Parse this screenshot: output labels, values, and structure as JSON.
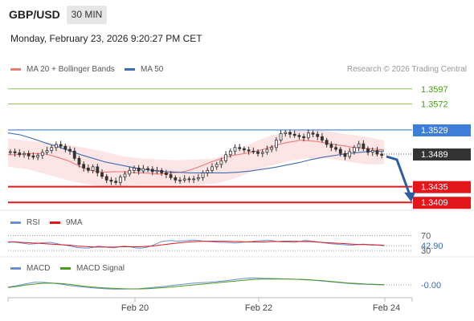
{
  "header": {
    "symbol": "GBP/USD",
    "timeframe": "30 MIN",
    "datetime": "Monday, February 23, 2026 9:20:27 PM CET"
  },
  "legend": {
    "ma20_label": "MA 20 + Bollinger Bands",
    "ma50_label": "MA 50",
    "credit": "Research © 2026 Trading Central",
    "rsi_label": "RSI",
    "ma9_label": "9MA",
    "macd_label": "MACD",
    "macd_signal_label": "MACD Signal"
  },
  "colors": {
    "ma20": "#f07a7a",
    "ma50": "#3d6db5",
    "bollinger_fill": "#fde2e2",
    "candle": "#333333",
    "resistance_green": "#8cc152",
    "pivot_blue": "#3d7ed9",
    "support_red": "#e3161b",
    "current_price_box": "#333333",
    "arrow": "#2d5ea3",
    "rsi": "#6a8fd6",
    "rsi_ma9": "#e3161b",
    "macd": "#6a8fd6",
    "macd_signal": "#4a9a1c"
  },
  "chart_data": {
    "type": "candlestick",
    "x_ticks": [
      "Feb 20",
      "Feb 22",
      "Feb 24"
    ],
    "ylim": [
      1.3396,
      1.3618
    ],
    "levels": [
      {
        "label": "1.3597",
        "value": 1.3597,
        "kind": "resistance-green"
      },
      {
        "label": "1.3572",
        "value": 1.3572,
        "kind": "resistance-green"
      },
      {
        "label": "1.3529",
        "value": 1.3529,
        "kind": "pivot"
      },
      {
        "label": "1.3489",
        "value": 1.3489,
        "kind": "current"
      },
      {
        "label": "1.3435",
        "value": 1.3435,
        "kind": "support-red"
      },
      {
        "label": "1.3409",
        "value": 1.3409,
        "kind": "support-red"
      }
    ],
    "forecast_arrow": {
      "from": 1.3485,
      "to": 1.3411
    },
    "price_series": [
      1.3493,
      1.3491,
      1.3488,
      1.349,
      1.3486,
      1.3484,
      1.3487,
      1.3492,
      1.3495,
      1.35,
      1.3505,
      1.3502,
      1.3497,
      1.3494,
      1.3482,
      1.3472,
      1.3466,
      1.3462,
      1.3468,
      1.3458,
      1.3452,
      1.3446,
      1.3444,
      1.3442,
      1.3451,
      1.3456,
      1.3462,
      1.3466,
      1.3461,
      1.3465,
      1.3464,
      1.346,
      1.3462,
      1.3458,
      1.3455,
      1.345,
      1.3446,
      1.3446,
      1.3448,
      1.3447,
      1.3448,
      1.345,
      1.3458,
      1.3462,
      1.3468,
      1.3472,
      1.3478,
      1.3488,
      1.3494,
      1.35,
      1.3498,
      1.3496,
      1.3494,
      1.3493,
      1.349,
      1.3492,
      1.3497,
      1.35,
      1.3512,
      1.3523,
      1.3525,
      1.3522,
      1.352,
      1.3518,
      1.3516,
      1.3524,
      1.3522,
      1.3518,
      1.3512,
      1.3505,
      1.35,
      1.3497,
      1.349,
      1.3485,
      1.3493,
      1.35,
      1.3506,
      1.3498,
      1.3492,
      1.3495,
      1.3489,
      1.3487
    ],
    "ma20": [
      1.3488,
      1.3488,
      1.3489,
      1.349,
      1.349,
      1.3489,
      1.3486,
      1.3482,
      1.3478,
      1.3472,
      1.3466,
      1.3462,
      1.346,
      1.3459,
      1.346,
      1.346,
      1.3459,
      1.3458,
      1.3458,
      1.3457,
      1.3456,
      1.3457,
      1.3458,
      1.3459,
      1.3462,
      1.3466,
      1.3471,
      1.3476,
      1.348,
      1.3484,
      1.3487,
      1.3489,
      1.3491,
      1.3494,
      1.3497,
      1.3501,
      1.3505,
      1.3508,
      1.351,
      1.3512,
      1.3511,
      1.351,
      1.3508,
      1.3506,
      1.3504,
      1.3502,
      1.35,
      1.3499,
      1.3498,
      1.3497,
      1.3496
    ],
    "ma50": [
      1.3524,
      1.3521,
      1.3515,
      1.3508,
      1.3502,
      1.3495,
      1.3488,
      1.3482,
      1.3476,
      1.3472,
      1.3468,
      1.3464,
      1.3462,
      1.346,
      1.3459,
      1.3458,
      1.3458,
      1.3458,
      1.3458,
      1.3459,
      1.3461,
      1.3464,
      1.3467,
      1.3471,
      1.3475,
      1.348,
      1.3484,
      1.3487,
      1.349,
      1.3492,
      1.3494,
      1.3494
    ],
    "bollinger_upper": [
      1.3515,
      1.3511,
      1.3508,
      1.3505,
      1.35,
      1.3494,
      1.3486,
      1.3482,
      1.348,
      1.3479,
      1.348,
      1.3482,
      1.3492,
      1.3508,
      1.352,
      1.3527,
      1.353,
      1.3527,
      1.3522,
      1.3518,
      1.3512
    ],
    "bollinger_lower": [
      1.3468,
      1.3464,
      1.3456,
      1.3447,
      1.344,
      1.3436,
      1.3436,
      1.3438,
      1.3438,
      1.3438,
      1.3438,
      1.344,
      1.3448,
      1.346,
      1.347,
      1.3478,
      1.3482,
      1.3482,
      1.3477,
      1.3472,
      1.3472
    ],
    "rsi": {
      "ylim": [
        28,
        78
      ],
      "ticks": [
        {
          "label": "70",
          "value": 70
        },
        {
          "label": "30",
          "value": 30
        }
      ],
      "current_label": "42.90",
      "current_value": 42.9,
      "rsi_values": [
        52,
        53,
        51,
        49,
        47,
        48,
        50,
        51,
        52,
        49,
        46,
        44,
        41,
        38,
        37,
        36,
        38,
        42,
        40,
        38,
        37,
        40,
        42,
        40,
        37,
        36,
        38,
        42,
        48,
        54,
        56,
        57,
        55,
        56,
        57,
        58,
        57,
        55,
        54,
        53,
        52,
        52,
        51,
        50,
        52,
        53,
        54,
        56,
        57,
        58,
        56,
        54,
        53,
        53,
        52,
        54,
        57,
        56,
        54,
        52,
        50,
        48,
        47,
        46,
        45,
        44,
        46,
        47,
        46,
        46,
        44,
        43
      ],
      "ma9_values": [
        53,
        53,
        52,
        51,
        50,
        49,
        48,
        47,
        46,
        45,
        44,
        42,
        41,
        40,
        39,
        39,
        39,
        39,
        40,
        40,
        40,
        40,
        41,
        42,
        44,
        46,
        48,
        50,
        52,
        53,
        54,
        55,
        55,
        55,
        55,
        55,
        54,
        54,
        53,
        53,
        53,
        53,
        54,
        54,
        55,
        55,
        55,
        54,
        54,
        53,
        52,
        51,
        50,
        49,
        48,
        47,
        46,
        46,
        45,
        45,
        44
      ]
    },
    "macd": {
      "ylim": [
        -0.0042,
        0.0045
      ],
      "current_label": "-0.00",
      "current_value": 0,
      "macd_values": [
        -0.0008,
        -0.0003,
        0.0004,
        0.001,
        0.001,
        0.0007,
        0.0003,
        -0.0002,
        -0.0006,
        -0.0009,
        -0.0012,
        -0.0014,
        -0.0016,
        -0.0016,
        -0.0015,
        -0.0014,
        -0.0011,
        -0.0008,
        -0.0005,
        -0.0001,
        0.0002,
        0.0006,
        0.0008,
        0.001,
        0.0013,
        0.0016,
        0.002,
        0.0024,
        0.0026,
        0.0025,
        0.0024,
        0.0023,
        0.0022,
        0.0021,
        0.0019,
        0.0017,
        0.0014,
        0.0011,
        0.0008,
        0.0005,
        0.0003,
        0.0002,
        0.0001,
        0.0
      ],
      "signal_values": [
        -0.001,
        -0.0006,
        -0.0001,
        0.0003,
        0.0006,
        0.0007,
        0.0005,
        0.0002,
        -0.0002,
        -0.0006,
        -0.0009,
        -0.0011,
        -0.0013,
        -0.0014,
        -0.0015,
        -0.0015,
        -0.0014,
        -0.0012,
        -0.001,
        -0.0007,
        -0.0004,
        -0.0001,
        0.0002,
        0.0005,
        0.0008,
        0.0011,
        0.0014,
        0.0017,
        0.002,
        0.0022,
        0.0022,
        0.0022,
        0.0022,
        0.0021,
        0.002,
        0.0018,
        0.0016,
        0.0013,
        0.001,
        0.0007,
        0.0005,
        0.0003,
        0.0002,
        0.0001
      ]
    }
  }
}
